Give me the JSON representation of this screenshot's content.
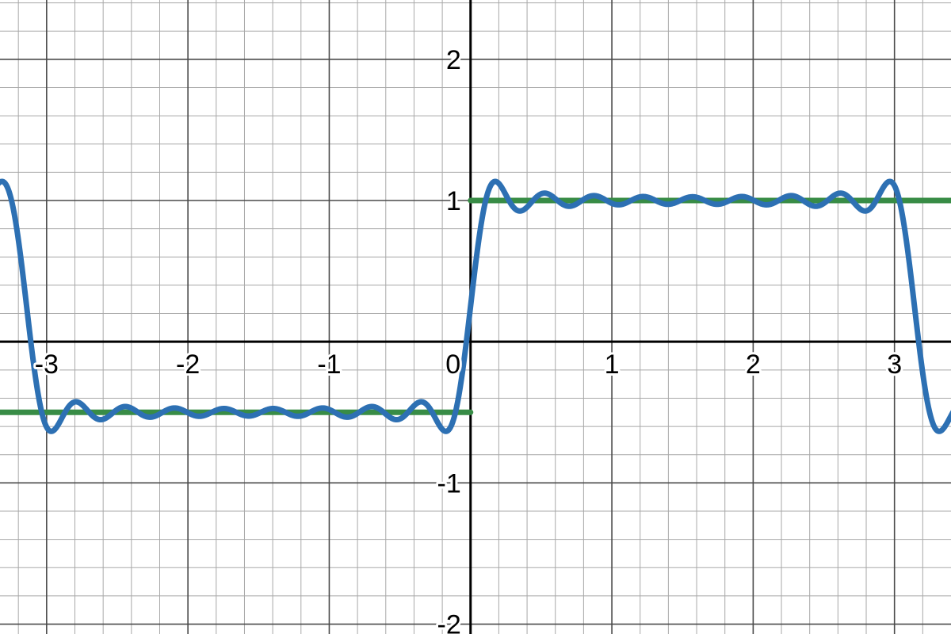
{
  "chart_data": {
    "type": "line",
    "title": "",
    "xlabel": "",
    "ylabel": "",
    "xlim": [
      -3.33,
      3.4
    ],
    "ylim": [
      -2.07,
      2.42
    ],
    "grid": true,
    "minor_grid_step": 0.2,
    "major_grid_step": 1,
    "x_ticks": [
      -3,
      -2,
      -1,
      0,
      1,
      2,
      3
    ],
    "x_tick_labels": [
      "-3",
      "-2",
      "-1",
      "0",
      "1",
      "2",
      "3"
    ],
    "y_ticks": [
      -2,
      -1,
      1,
      2
    ],
    "y_tick_labels": [
      "-2",
      "-1",
      "1",
      "2"
    ],
    "series": [
      {
        "color": "#388c46",
        "kind": "piecewise-constant",
        "segments": [
          {
            "x": [
              -3.33,
              0.0
            ],
            "y": -0.5
          },
          {
            "x": [
              0.0,
              3.4
            ],
            "y": 1.0
          }
        ]
      },
      {
        "color": "#2d70b3",
        "kind": "fourier-square-wave",
        "expression": "0.25 + (3/π)·Σ sin((2k−1)x)/(2k−1), k = 1…9",
        "offset": 0.25,
        "amplitude": 0.75,
        "harmonics": 9,
        "samples": [
          {
            "x": -3.0,
            "y": -0.62
          },
          {
            "x": -2.68,
            "y": -0.35
          },
          {
            "x": -1.57,
            "y": -0.52
          },
          {
            "x": -0.3,
            "y": -0.38
          },
          {
            "x": -0.21,
            "y": -0.62
          },
          {
            "x": 0.0,
            "y": 0.25
          },
          {
            "x": 0.21,
            "y": 1.12
          },
          {
            "x": 0.41,
            "y": 0.92
          },
          {
            "x": 1.57,
            "y": 1.02
          },
          {
            "x": 2.94,
            "y": 1.12
          },
          {
            "x": 3.14,
            "y": 0.25
          }
        ]
      }
    ]
  }
}
